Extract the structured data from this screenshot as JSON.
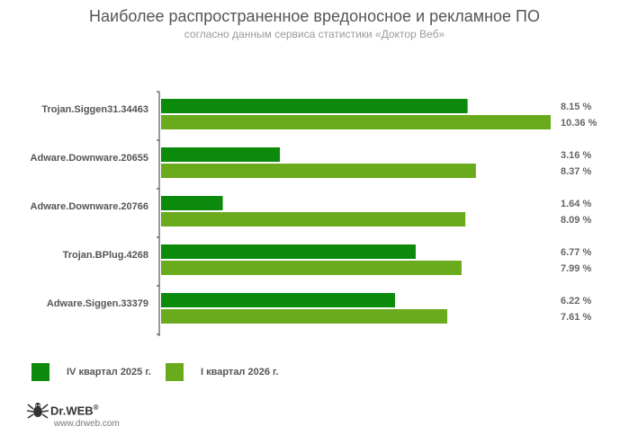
{
  "header": {
    "title": "Наиболее распространенное вредоносное и рекламное ПО",
    "subtitle": "согласно данным сервиса статистики «Доктор Веб»"
  },
  "legend": {
    "items": [
      {
        "label": "IV квартал 2025 г.",
        "color": "#0b8a0b"
      },
      {
        "label": "I квартал 2026 г.",
        "color": "#6aab1e"
      }
    ]
  },
  "brand": {
    "name": "Dr.WEB",
    "reg": "®",
    "url": "www.drweb.com",
    "icon": "spider-logo-icon"
  },
  "chart_data": {
    "type": "bar",
    "orientation": "horizontal",
    "categories": [
      "Trojan.Siggen31.34463",
      "Adware.Downware.20655",
      "Adware.Downware.20766",
      "Trojan.BPlug.4268",
      "Adware.Siggen.33379"
    ],
    "series": [
      {
        "name": "IV квартал 2025 г.",
        "color": "#0b8a0b",
        "values": [
          8.15,
          3.16,
          1.64,
          6.77,
          6.22
        ],
        "labels": [
          "8.15 %",
          "3.16 %",
          "1.64 %",
          "6.77 %",
          "6.22 %"
        ]
      },
      {
        "name": "I квартал 2026 г.",
        "color": "#6aab1e",
        "values": [
          10.36,
          8.37,
          8.09,
          7.99,
          7.61
        ],
        "labels": [
          "10.36 %",
          "8.37 %",
          "8.09 %",
          "7.99 %",
          "7.61 %"
        ]
      }
    ],
    "title": "Наиболее распространенное вредоносное и рекламное ПО",
    "subtitle": "согласно данным сервиса статистики «Доктор Веб»",
    "xlim": [
      0,
      10.36
    ],
    "grid": false,
    "legend_position": "bottom-left"
  }
}
